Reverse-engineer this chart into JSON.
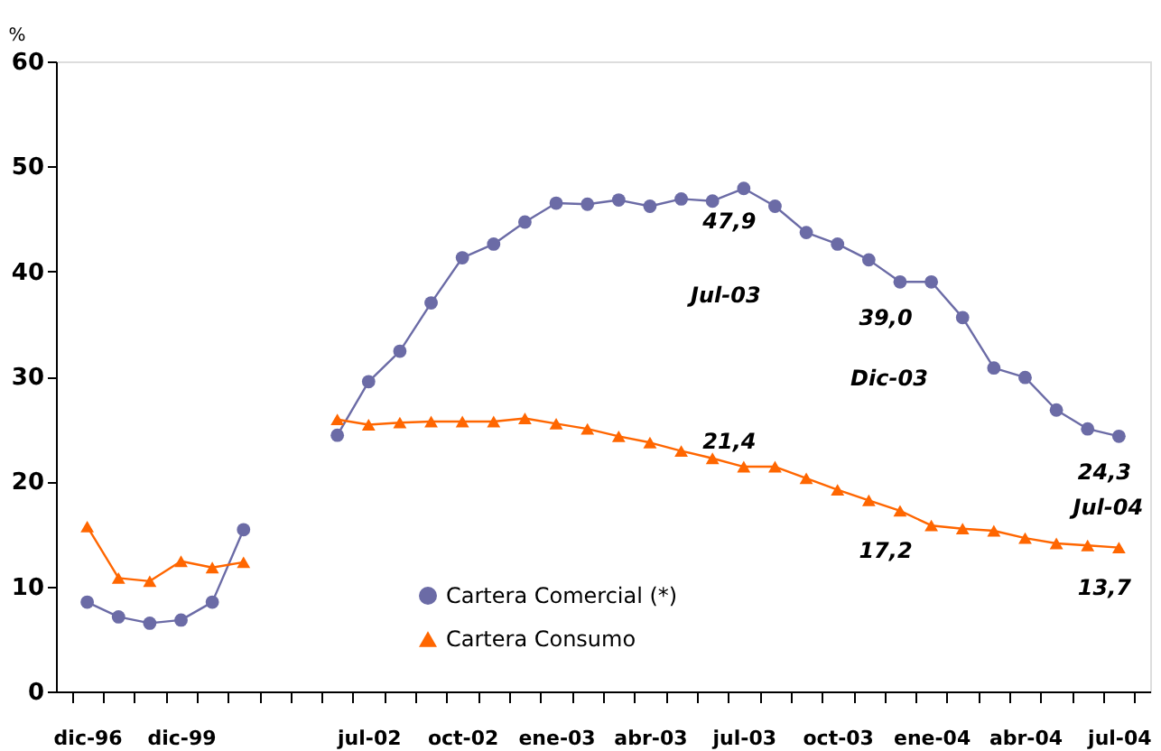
{
  "chart_data": {
    "type": "line",
    "ylabel": "%",
    "categories": [
      "dic-96",
      null,
      null,
      "dic-99",
      null,
      null,
      null,
      null,
      null,
      "jul-02",
      null,
      null,
      "oct-02",
      null,
      null,
      "ene-03",
      null,
      null,
      "abr-03",
      null,
      null,
      "jul-03",
      null,
      null,
      "oct-03",
      null,
      null,
      "ene-04",
      null,
      null,
      "abr-04",
      null,
      null,
      "jul-04"
    ],
    "series": [
      {
        "name": "Cartera Comercial (*)",
        "color": "#6b6ba6",
        "marker": "circle",
        "values": [
          8.5,
          7.1,
          6.5,
          6.8,
          8.5,
          15.4,
          null,
          null,
          24.4,
          29.5,
          32.4,
          37.0,
          41.3,
          42.6,
          44.7,
          46.5,
          46.4,
          46.8,
          46.2,
          46.9,
          46.7,
          47.9,
          46.2,
          43.7,
          42.6,
          41.1,
          39.0,
          39.0,
          35.6,
          30.8,
          29.9,
          26.8,
          25.0,
          24.3
        ],
        "value_labels": [
          null,
          null,
          null,
          null,
          null,
          null,
          null,
          null,
          null,
          null,
          null,
          null,
          null,
          null,
          null,
          null,
          null,
          null,
          null,
          null,
          null,
          "47,9",
          null,
          null,
          null,
          null,
          "39,0",
          null,
          null,
          null,
          null,
          null,
          null,
          "24,3"
        ]
      },
      {
        "name": "Cartera Consumo",
        "color": "#ff6600",
        "marker": "triangle",
        "values": [
          15.7,
          10.8,
          10.5,
          12.4,
          11.8,
          12.3,
          null,
          null,
          25.9,
          25.4,
          25.6,
          25.7,
          25.7,
          25.7,
          26.0,
          25.5,
          25.0,
          24.3,
          23.7,
          22.9,
          22.2,
          21.4,
          21.4,
          20.3,
          19.2,
          18.2,
          17.2,
          15.8,
          15.5,
          15.3,
          14.6,
          14.1,
          13.9,
          13.7
        ],
        "value_labels": [
          null,
          null,
          null,
          null,
          null,
          null,
          null,
          null,
          null,
          null,
          null,
          null,
          null,
          null,
          null,
          null,
          null,
          null,
          null,
          null,
          null,
          "21,4",
          null,
          null,
          null,
          null,
          "17,2",
          null,
          null,
          null,
          null,
          null,
          null,
          "13,7"
        ]
      }
    ],
    "annotations": [
      "Jul-03",
      "Dic-03",
      "Jul-04"
    ],
    "ylim": [
      0,
      60
    ],
    "yticks": [
      0,
      10,
      20,
      30,
      40,
      50,
      60
    ],
    "grid": false,
    "legend": "bottom",
    "line_style": "solid"
  }
}
